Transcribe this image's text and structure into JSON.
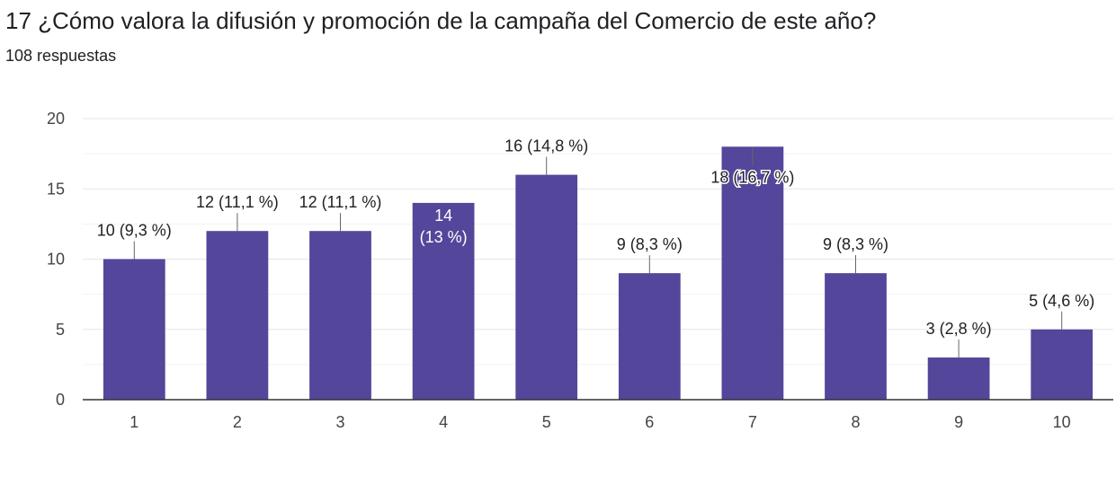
{
  "question": {
    "title": "17 ¿Cómo valora la difusión y promoción de la campaña del Comercio de este año?",
    "responses": "108 respuestas"
  },
  "colors": {
    "bar": "#54469a",
    "grid": "#e6e6e6",
    "axis": "#333333",
    "leader": "#666666"
  },
  "chart_data": {
    "type": "bar",
    "title": "17 ¿Cómo valora la difusión y promoción de la campaña del Comercio de este año?",
    "categories": [
      "1",
      "2",
      "3",
      "4",
      "5",
      "6",
      "7",
      "8",
      "9",
      "10"
    ],
    "values": [
      10,
      12,
      12,
      14,
      16,
      9,
      18,
      9,
      3,
      5
    ],
    "labels": [
      "10 (9,3 %)",
      "12 (11,1 %)",
      "12 (11,1 %)",
      "14 (13 %)",
      "16 (14,8 %)",
      "9 (8,3 %)",
      "18 (16,7 %)",
      "9 (8,3 %)",
      "3 (2,8 %)",
      "5 (4,6 %)"
    ],
    "yticks": [
      0,
      5,
      10,
      15,
      20
    ],
    "ylim": [
      0,
      20
    ],
    "grid": true,
    "xlabel": "",
    "ylabel": ""
  }
}
